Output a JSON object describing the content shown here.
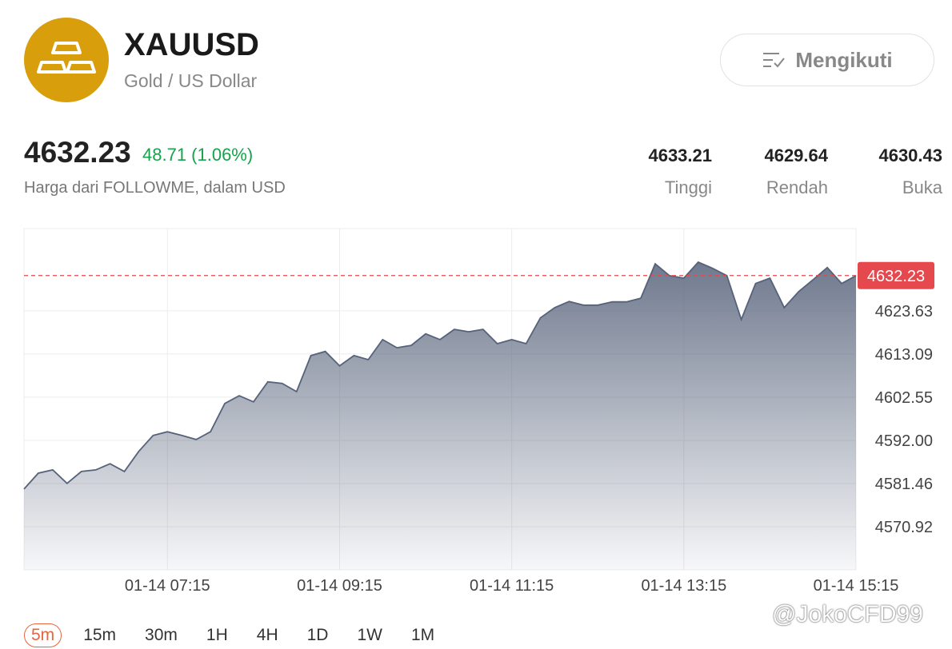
{
  "header": {
    "title": "XAUUSD",
    "subtitle": "Gold / US Dollar",
    "follow": "Mengikuti"
  },
  "quote": {
    "price": "4632.23",
    "change": "48.71 (1.06%)",
    "source": "Harga dari FOLLOWME, dalam USD",
    "stats": [
      {
        "value": "4633.21",
        "label": "Tinggi"
      },
      {
        "value": "4629.64",
        "label": "Rendah"
      },
      {
        "value": "4630.43",
        "label": "Buka"
      }
    ]
  },
  "chart_data": {
    "type": "area",
    "categories": [
      null,
      null,
      null,
      null,
      null,
      null,
      null,
      null,
      null,
      null,
      "01-14 07:15",
      null,
      null,
      null,
      null,
      null,
      null,
      null,
      null,
      null,
      null,
      null,
      "01-14 09:15",
      null,
      null,
      null,
      null,
      null,
      null,
      null,
      null,
      null,
      null,
      null,
      "01-14 11:15",
      null,
      null,
      null,
      null,
      null,
      null,
      null,
      null,
      null,
      null,
      null,
      "01-14 13:15",
      null,
      null,
      null,
      null,
      null,
      null,
      null,
      null,
      null,
      null,
      null,
      "01-14 15:15"
    ],
    "values": [
      4580.1,
      4584.0,
      4584.8,
      4581.5,
      4584.4,
      4584.8,
      4586.3,
      4584.4,
      4589.3,
      4593.2,
      4594.1,
      4593.2,
      4592.2,
      4594.1,
      4601.0,
      4602.9,
      4601.4,
      4606.3,
      4605.9,
      4603.9,
      4612.7,
      4613.7,
      4610.2,
      4612.7,
      4611.7,
      4616.6,
      4614.6,
      4615.2,
      4618.0,
      4616.6,
      4619.1,
      4618.5,
      4619.1,
      4615.6,
      4616.6,
      4615.6,
      4621.9,
      4624.4,
      4625.9,
      4625.0,
      4625.0,
      4625.8,
      4625.8,
      4626.7,
      4635.1,
      4632.2,
      4631.6,
      4635.5,
      4634.0,
      4632.2,
      4621.5,
      4630.3,
      4631.6,
      4624.4,
      4628.3,
      4631.2,
      4634.2,
      4630.3,
      4632.2
    ],
    "color": "#56627a",
    "last_price": 4632.23,
    "last_price_color": "#e5484d",
    "ylim": [
      4560.38,
      4643.7
    ],
    "yticks": [
      {
        "value": 4570.92,
        "label": "4570.92"
      },
      {
        "value": 4581.46,
        "label": "4581.46"
      },
      {
        "value": 4592,
        "label": "4592.00"
      },
      {
        "value": 4602.55,
        "label": "4602.55"
      },
      {
        "value": 4613.09,
        "label": "4613.09"
      },
      {
        "value": 4623.63,
        "label": "4623.63"
      }
    ],
    "grid": true
  },
  "timeframes": {
    "items": [
      "5m",
      "15m",
      "30m",
      "1H",
      "4H",
      "1D",
      "1W",
      "1M"
    ],
    "active": 0
  },
  "watermark": "@JokoCFD99"
}
